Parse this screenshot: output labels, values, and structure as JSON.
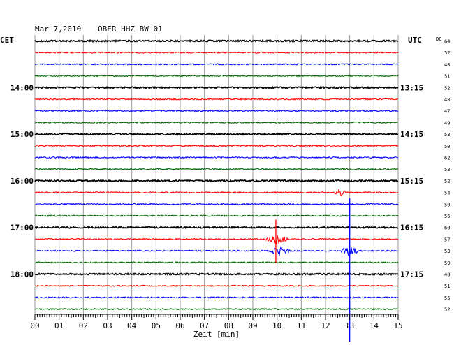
{
  "header": {
    "date": "Mar 7,2010",
    "station": "OBER HHZ BW 01"
  },
  "labels": {
    "left_tz": "CET",
    "right_tz": "UTC",
    "dc": "DC",
    "xlabel": "Zeit [min]"
  },
  "colors": {
    "cycle": [
      "#000000",
      "#ff0000",
      "#0000ff",
      "#006400"
    ],
    "grid": "#999999"
  },
  "chart_data": {
    "type": "line",
    "title": "Mar 7,2010   OBER HHZ BW 01",
    "xlabel": "Zeit [min]",
    "xlim": [
      0,
      15
    ],
    "x_ticks": [
      "00",
      "01",
      "02",
      "03",
      "04",
      "05",
      "06",
      "07",
      "08",
      "09",
      "10",
      "11",
      "12",
      "13",
      "14",
      "15"
    ],
    "row_count": 24,
    "left_hour_labels": [
      {
        "row": 4,
        "label": "14:00"
      },
      {
        "row": 8,
        "label": "15:00"
      },
      {
        "row": 12,
        "label": "16:00"
      },
      {
        "row": 16,
        "label": "17:00"
      },
      {
        "row": 20,
        "label": "18:00"
      }
    ],
    "right_hour_labels": [
      {
        "row": 4,
        "label": "13:15"
      },
      {
        "row": 8,
        "label": "14:15"
      },
      {
        "row": 12,
        "label": "15:15"
      },
      {
        "row": 16,
        "label": "16:15"
      },
      {
        "row": 20,
        "label": "17:15"
      }
    ],
    "dc_values": [
      "64",
      "52",
      "48",
      "51",
      "52",
      "48",
      "47",
      "49",
      "53",
      "50",
      "62",
      "53",
      "52",
      "54",
      "50",
      "56",
      "60",
      "57",
      "53",
      "59",
      "48",
      "51",
      "55",
      "52"
    ],
    "events": [
      {
        "row": 13,
        "minute": 12.6,
        "width": 0.3,
        "amplitude": 5
      },
      {
        "row": 17,
        "minute": 10.0,
        "width": 0.5,
        "amplitude": 7
      },
      {
        "row": 18,
        "minute": 10.1,
        "width": 0.5,
        "amplitude": 6
      },
      {
        "row": 18,
        "minute": 13.0,
        "width": 0.4,
        "amplitude": 8
      }
    ],
    "spikes": [
      {
        "row": 17,
        "minute": 9.95,
        "up": 28,
        "down": 34
      },
      {
        "row": 18,
        "minute": 13.0,
        "up": 75,
        "down": 130
      }
    ]
  }
}
